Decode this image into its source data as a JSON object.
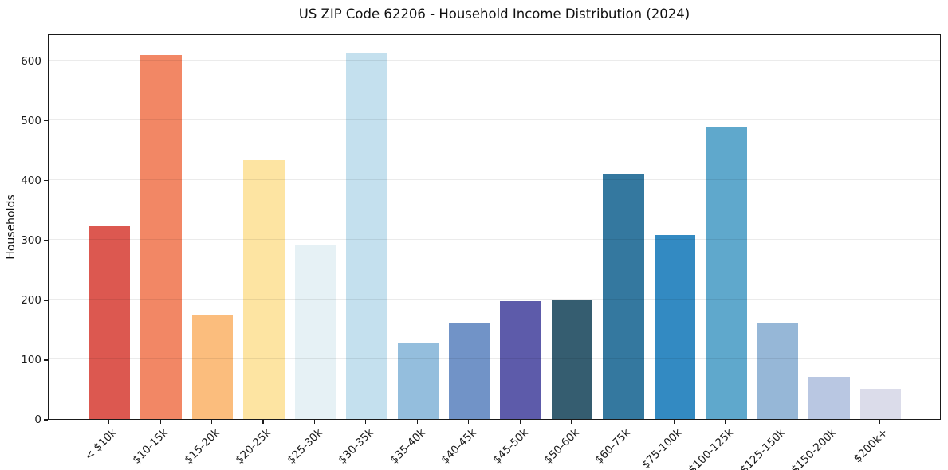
{
  "chart_data": {
    "type": "bar",
    "title": "US ZIP Code 62206 - Household Income Distribution (2024)",
    "xlabel": "",
    "ylabel": "Households",
    "ylim": [
      0,
      645
    ],
    "yticks": [
      0,
      100,
      200,
      300,
      400,
      500,
      600
    ],
    "grid": "horizontal",
    "legend": "none",
    "categories": [
      "< $10k",
      "$10-15k",
      "$15-20k",
      "$20-25k",
      "$25-30k",
      "$30-35k",
      "$35-40k",
      "$40-45k",
      "$45-50k",
      "$50-60k",
      "$60-75k",
      "$75-100k",
      "$100-125k",
      "$125-150k",
      "$150-200k",
      "$200k+"
    ],
    "values": [
      322,
      609,
      173,
      433,
      291,
      612,
      128,
      160,
      197,
      200,
      411,
      308,
      488,
      160,
      71,
      50
    ],
    "bar_colors": [
      "#dc5850",
      "#f28765",
      "#fbbd7d",
      "#fde4a2",
      "#e6f1f5",
      "#c4e0ee",
      "#94bedd",
      "#7193c7",
      "#5d5baa",
      "#355d70",
      "#34789f",
      "#338ac2",
      "#5fa8cc",
      "#96b7d7",
      "#b9c7e2",
      "#dbdcea"
    ]
  },
  "colors": {
    "background": "#ffffff",
    "spine": "#1a1a1a",
    "grid": "#ededed",
    "text": "#1a1a1a"
  }
}
